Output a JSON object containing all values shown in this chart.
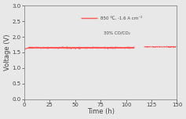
{
  "title": "",
  "xlabel": "Time (h)",
  "ylabel": "Voltage (V)",
  "xlim": [
    0,
    150
  ],
  "ylim": [
    0.0,
    3.0
  ],
  "xticks": [
    0,
    25,
    50,
    75,
    100,
    125,
    150
  ],
  "yticks": [
    0.0,
    0.5,
    1.0,
    1.5,
    2.0,
    2.5,
    3.0
  ],
  "line_color": "#ff5555",
  "line_width": 0.7,
  "legend_line1": "850 ℃, -1.6 A cm⁻²",
  "legend_line2": "30% CO/CO₂",
  "voltage_start": 1.6,
  "voltage_stable": 1.65,
  "voltage_end": 1.68,
  "time_total": 150,
  "noise_amplitude": 0.012,
  "gap_start": 108,
  "gap_end": 118,
  "background_color": "#e8e8e8",
  "axes_color": "#888888",
  "text_color": "#444444"
}
